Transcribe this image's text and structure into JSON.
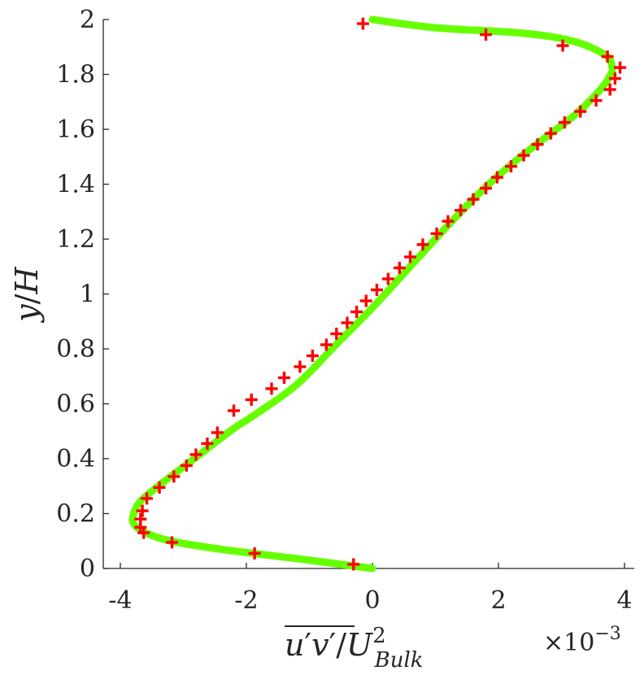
{
  "chart_data": {
    "type": "line",
    "xlabel": "u'v'/U_Bulk^2",
    "ylabel": "y/H",
    "x_multiplier": "×10^-3",
    "xlim": [
      -4.2,
      4.2
    ],
    "ylim": [
      0,
      2
    ],
    "xticks": [
      -4,
      -2,
      0,
      2,
      4
    ],
    "yticks": [
      0,
      0.2,
      0.4,
      0.6,
      0.8,
      1,
      1.2,
      1.4,
      1.6,
      1.8,
      2
    ],
    "grid": false,
    "colors": {
      "curve": "#66ff00",
      "markers": "#ff0000",
      "axis": "#262626"
    },
    "series": [
      {
        "style": "line",
        "x": [
          0,
          -1.0,
          -2.4,
          -3.2,
          -3.6,
          -3.78,
          -3.8,
          -3.7,
          -3.4,
          -3.0,
          -2.6,
          -2.2,
          -1.8,
          -1.2,
          -0.6,
          0,
          0.6,
          1.2,
          1.8,
          2.3,
          2.8,
          3.2,
          3.6,
          3.78,
          3.8,
          3.7,
          3.2,
          2.4,
          1.0,
          0
        ],
        "y": [
          0,
          0.03,
          0.07,
          0.1,
          0.13,
          0.16,
          0.19,
          0.24,
          0.3,
          0.37,
          0.44,
          0.51,
          0.57,
          0.67,
          0.81,
          0.95,
          1.1,
          1.25,
          1.39,
          1.49,
          1.58,
          1.65,
          1.74,
          1.8,
          1.83,
          1.87,
          1.92,
          1.95,
          1.97,
          2.0
        ]
      },
      {
        "style": "markers",
        "x": [
          -0.3,
          -1.87,
          -3.18,
          -3.63,
          -3.68,
          -3.68,
          -3.65,
          -3.58,
          -3.38,
          -3.15,
          -2.95,
          -2.8,
          -2.62,
          -2.46,
          -2.2,
          -1.92,
          -1.6,
          -1.4,
          -1.15,
          -0.95,
          -0.73,
          -0.57,
          -0.4,
          -0.25,
          -0.1,
          0.07,
          0.25,
          0.43,
          0.6,
          0.8,
          1.02,
          1.2,
          1.4,
          1.6,
          1.8,
          1.98,
          2.2,
          2.4,
          2.62,
          2.83,
          3.05,
          3.3,
          3.55,
          3.77,
          3.85,
          3.93,
          3.73,
          3.02,
          1.8,
          -0.15
        ],
        "y": [
          0.015,
          0.055,
          0.095,
          0.13,
          0.15,
          0.18,
          0.21,
          0.255,
          0.295,
          0.335,
          0.375,
          0.415,
          0.455,
          0.495,
          0.575,
          0.615,
          0.655,
          0.695,
          0.735,
          0.775,
          0.815,
          0.855,
          0.895,
          0.935,
          0.975,
          1.015,
          1.055,
          1.095,
          1.135,
          1.18,
          1.22,
          1.265,
          1.305,
          1.345,
          1.385,
          1.425,
          1.465,
          1.505,
          1.545,
          1.585,
          1.625,
          1.665,
          1.705,
          1.745,
          1.785,
          1.825,
          1.865,
          1.905,
          1.945,
          1.985
        ]
      }
    ]
  }
}
